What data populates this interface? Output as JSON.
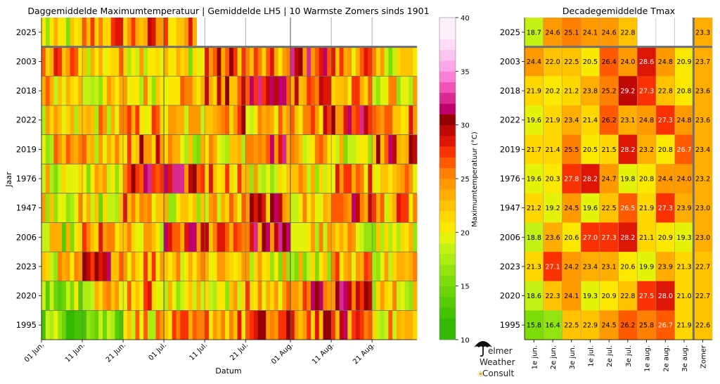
{
  "colors": {
    "scale": [
      "#34b804",
      "#45c204",
      "#57cb06",
      "#6ad408",
      "#7ddc0a",
      "#93e40e",
      "#abec12",
      "#c5f114",
      "#e5f20a",
      "#fbe800",
      "#fed600",
      "#ffc200",
      "#ffae00",
      "#ff9900",
      "#ff7f00",
      "#ff5a00",
      "#fa3203",
      "#de1606",
      "#bd0806",
      "#930003",
      "#c0006a",
      "#d92a94",
      "#f052ba",
      "#fa7fd6",
      "#fca5e8",
      "#fdc3f0",
      "#fedcf6",
      "#ffeefb"
    ],
    "divider": "#707070",
    "cell_text_dark": "#000000",
    "cell_text_light": "#ffffff"
  },
  "chart_data": [
    {
      "type": "heatmap",
      "title": "Daggemiddelde Maximumtemperatuur | Gemiddelde LH5 | 10 Warmste Zomers sinds 1901",
      "xlabel": "Datum",
      "ylabel": "Jaar",
      "years": [
        "2025",
        "2003",
        "2018",
        "2022",
        "2019",
        "1976",
        "1947",
        "2006",
        "2023",
        "2020",
        "1995"
      ],
      "x_ticks": [
        "01 Jun.",
        "11 Jun.",
        "21 Jun.",
        "01 Jul.",
        "11 Jul.",
        "21 Jul.",
        "01 Aug.",
        "11 Aug.",
        "21 Aug."
      ],
      "x_range": [
        "1 jun",
        "31 aug"
      ],
      "days": 92,
      "days_2025": 38,
      "decade_means": [
        [
          18.7,
          24.6,
          25.1,
          24.1,
          24.6,
          22.8,
          null,
          null,
          null
        ],
        [
          24.4,
          22.0,
          22.5,
          20.5,
          26.4,
          24.0,
          28.6,
          24.8,
          20.9
        ],
        [
          21.9,
          20.2,
          21.2,
          23.8,
          25.2,
          29.2,
          27.3,
          22.8,
          20.8
        ],
        [
          19.6,
          21.9,
          23.4,
          21.4,
          26.2,
          23.1,
          24.8,
          27.3,
          24.8
        ],
        [
          21.7,
          21.4,
          25.5,
          20.5,
          21.5,
          28.2,
          23.2,
          20.8,
          26.7
        ],
        [
          19.6,
          20.3,
          27.8,
          28.2,
          24.7,
          19.8,
          20.8,
          24.4,
          24.0
        ],
        [
          21.2,
          19.2,
          24.5,
          19.6,
          22.5,
          26.5,
          21.9,
          27.3,
          23.9
        ],
        [
          18.8,
          23.6,
          20.6,
          27.0,
          27.3,
          28.2,
          21.1,
          20.9,
          19.3
        ],
        [
          21.3,
          27.1,
          24.2,
          23.4,
          23.1,
          20.6,
          19.9,
          23.9,
          21.3
        ],
        [
          18.6,
          22.3,
          24.1,
          19.3,
          20.9,
          22.8,
          27.5,
          28.0,
          21.0
        ],
        [
          15.8,
          16.4,
          22.5,
          22.9,
          24.5,
          26.2,
          25.8,
          26.7,
          21.9
        ]
      ],
      "colorbar": {
        "label": "Maximumtemperatuur (°C)",
        "min": 10,
        "max": 40,
        "step": 1,
        "ticks": [
          "10",
          "15",
          "20",
          "25",
          "30",
          "35",
          "40"
        ]
      }
    },
    {
      "type": "table",
      "title": "Decadegemiddelde Tmax",
      "columns": [
        "1e jun.",
        "2e jun.",
        "3e jun.",
        "1e jul.",
        "2e jul.",
        "3e jul.",
        "1e aug.",
        "2e aug.",
        "3e aug.",
        "Zomer"
      ],
      "rows": [
        {
          "year": "2025",
          "values": [
            "18.7",
            "24.6",
            "25.1",
            "24.1",
            "24.6",
            "22.8",
            "",
            "",
            "",
            "23.3"
          ]
        },
        {
          "year": "2003",
          "values": [
            "24.4",
            "22.0",
            "22.5",
            "20.5",
            "26.4",
            "24.0",
            "28.6",
            "24.8",
            "20.9",
            "23.7"
          ]
        },
        {
          "year": "2018",
          "values": [
            "21.9",
            "20.2",
            "21.2",
            "23.8",
            "25.2",
            "29.2",
            "27.3",
            "22.8",
            "20.8",
            "23.6"
          ]
        },
        {
          "year": "2022",
          "values": [
            "19.6",
            "21.9",
            "23.4",
            "21.4",
            "26.2",
            "23.1",
            "24.8",
            "27.3",
            "24.8",
            "23.6"
          ]
        },
        {
          "year": "2019",
          "values": [
            "21.7",
            "21.4",
            "25.5",
            "20.5",
            "21.5",
            "28.2",
            "23.2",
            "20.8",
            "26.7",
            "23.4"
          ]
        },
        {
          "year": "1976",
          "values": [
            "19.6",
            "20.3",
            "27.8",
            "28.2",
            "24.7",
            "19.8",
            "20.8",
            "24.4",
            "24.0",
            "23.2"
          ]
        },
        {
          "year": "1947",
          "values": [
            "21.2",
            "19.2",
            "24.5",
            "19.6",
            "22.5",
            "26.5",
            "21.9",
            "27.3",
            "23.9",
            "23.0"
          ]
        },
        {
          "year": "2006",
          "values": [
            "18.8",
            "23.6",
            "20.6",
            "27.0",
            "27.3",
            "28.2",
            "21.1",
            "20.9",
            "19.3",
            "23.0"
          ]
        },
        {
          "year": "2023",
          "values": [
            "21.3",
            "27.1",
            "24.2",
            "23.4",
            "23.1",
            "20.6",
            "19.9",
            "23.9",
            "21.3",
            "22.7"
          ]
        },
        {
          "year": "2020",
          "values": [
            "18.6",
            "22.3",
            "24.1",
            "19.3",
            "20.9",
            "22.8",
            "27.5",
            "28.0",
            "21.0",
            "22.7"
          ]
        },
        {
          "year": "1995",
          "values": [
            "15.8",
            "16.4",
            "22.5",
            "22.9",
            "24.5",
            "26.2",
            "25.8",
            "26.7",
            "21.9",
            "22.6"
          ]
        }
      ]
    }
  ],
  "logo": {
    "line1": "elmer",
    "line2": "Weather",
    "line3": "Consult"
  }
}
